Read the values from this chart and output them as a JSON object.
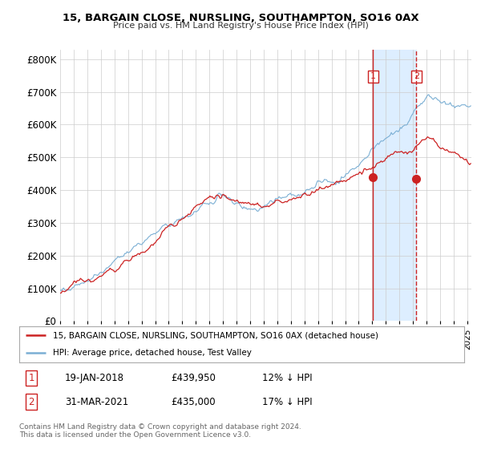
{
  "title": "15, BARGAIN CLOSE, NURSLING, SOUTHAMPTON, SO16 0AX",
  "subtitle": "Price paid vs. HM Land Registry's House Price Index (HPI)",
  "xlim_start": 1995.0,
  "xlim_end": 2025.3,
  "ylim_min": 0,
  "ylim_max": 830000,
  "yticks": [
    0,
    100000,
    200000,
    300000,
    400000,
    500000,
    600000,
    700000,
    800000
  ],
  "ytick_labels": [
    "£0",
    "£100K",
    "£200K",
    "£300K",
    "£400K",
    "£500K",
    "£600K",
    "£700K",
    "£800K"
  ],
  "hpi_color": "#7bafd4",
  "price_color": "#cc2222",
  "vline1_color": "#cc2222",
  "vline1_style": "-",
  "vline2_color": "#cc2222",
  "vline2_style": "--",
  "shade_color": "#ddeeff",
  "transaction1_x": 2018.05,
  "transaction1_y": 439950,
  "transaction2_x": 2021.25,
  "transaction2_y": 435000,
  "legend_line1": "15, BARGAIN CLOSE, NURSLING, SOUTHAMPTON, SO16 0AX (detached house)",
  "legend_line2": "HPI: Average price, detached house, Test Valley",
  "table_row1": [
    "1",
    "19-JAN-2018",
    "£439,950",
    "12% ↓ HPI"
  ],
  "table_row2": [
    "2",
    "31-MAR-2021",
    "£435,000",
    "17% ↓ HPI"
  ],
  "footnote": "Contains HM Land Registry data © Crown copyright and database right 2024.\nThis data is licensed under the Open Government Licence v3.0.",
  "background_color": "#ffffff",
  "grid_color": "#cccccc"
}
